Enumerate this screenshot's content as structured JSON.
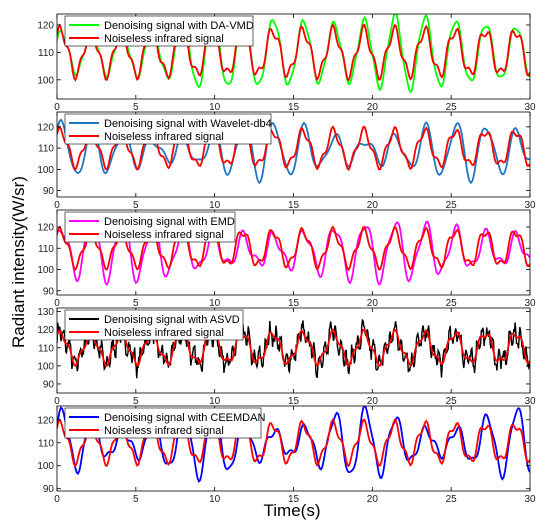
{
  "figure": {
    "xlabel": "Time(s)",
    "ylabel": "Radiant intensity(W/sr)"
  },
  "colors": {
    "reference": "#ff0000",
    "da_vmd": "#00ff00",
    "wavelet": "#1f77c4",
    "emd": "#ff00ff",
    "asvd": "#000000",
    "ceemdan": "#0000ff"
  },
  "chart_data": [
    {
      "type": "line",
      "xlim": [
        0,
        30
      ],
      "ylim": [
        93,
        124
      ],
      "x_ticks": [
        "0",
        "5",
        "10",
        "15",
        "20",
        "25",
        "30"
      ],
      "y_ticks": [
        "100",
        "110",
        "120"
      ],
      "y_tick_values": [
        100,
        110,
        120
      ],
      "grid": false,
      "legend_position": "top-left",
      "series": [
        {
          "name": "Denoising signal with DA-VMD",
          "color": "#00ff00",
          "variant": "davmd",
          "amplitude_profile": {
            "t": [
              0,
              7,
              9,
              14,
              18,
              22,
              26,
              30
            ],
            "amp": [
              7,
              9,
              13,
              12,
              10,
              14,
              11,
              9
            ]
          }
        },
        {
          "name": "Noiseless infrared signal",
          "color": "#ff0000",
          "variant": "reference"
        }
      ]
    },
    {
      "type": "line",
      "xlim": [
        0,
        30
      ],
      "ylim": [
        87,
        127
      ],
      "x_ticks": [
        "0",
        "5",
        "10",
        "15",
        "20",
        "25",
        "30"
      ],
      "y_ticks": [
        "90",
        "100",
        "110",
        "120"
      ],
      "y_tick_values": [
        90,
        100,
        110,
        120
      ],
      "grid": false,
      "legend_position": "top-left",
      "series": [
        {
          "name": "Denoising signal with Wavelet-db4",
          "color": "#1f77c4",
          "variant": "wavelet"
        },
        {
          "name": "Noiseless infrared signal",
          "color": "#ff0000",
          "variant": "reference"
        }
      ]
    },
    {
      "type": "line",
      "xlim": [
        0,
        30
      ],
      "ylim": [
        88,
        128
      ],
      "x_ticks": [
        "0",
        "5",
        "10",
        "15",
        "20",
        "25",
        "30"
      ],
      "y_ticks": [
        "90",
        "100",
        "110",
        "120"
      ],
      "y_tick_values": [
        90,
        100,
        110,
        120
      ],
      "grid": false,
      "legend_position": "top-left",
      "series": [
        {
          "name": "Denoising signal with EMD",
          "color": "#ff00ff",
          "variant": "emd"
        },
        {
          "name": "Noiseless infrared signal",
          "color": "#ff0000",
          "variant": "reference"
        }
      ]
    },
    {
      "type": "line",
      "xlim": [
        0,
        30
      ],
      "ylim": [
        85,
        132
      ],
      "x_ticks": [
        "0",
        "5",
        "10",
        "15",
        "20",
        "25",
        "30"
      ],
      "y_ticks": [
        "90",
        "100",
        "110",
        "120",
        "130"
      ],
      "y_tick_values": [
        90,
        100,
        110,
        120,
        130
      ],
      "grid": false,
      "legend_position": "top-left",
      "series": [
        {
          "name": "Denoising signal with ASVD",
          "color": "#000000",
          "variant": "asvd"
        },
        {
          "name": "Noiseless infrared signal",
          "color": "#ff0000",
          "variant": "reference"
        }
      ]
    },
    {
      "type": "line",
      "xlim": [
        0,
        30
      ],
      "ylim": [
        89,
        126
      ],
      "x_ticks": [
        "0",
        "5",
        "10",
        "15",
        "20",
        "25",
        "30"
      ],
      "y_ticks": [
        "90",
        "100",
        "110",
        "120"
      ],
      "y_tick_values": [
        90,
        100,
        110,
        120
      ],
      "grid": false,
      "legend_position": "top-left",
      "series": [
        {
          "name": "Denoising signal with CEEMDAN",
          "color": "#0000ff",
          "variant": "ceemdan"
        },
        {
          "name": "Noiseless infrared signal",
          "color": "#ff0000",
          "variant": "reference"
        }
      ]
    }
  ]
}
